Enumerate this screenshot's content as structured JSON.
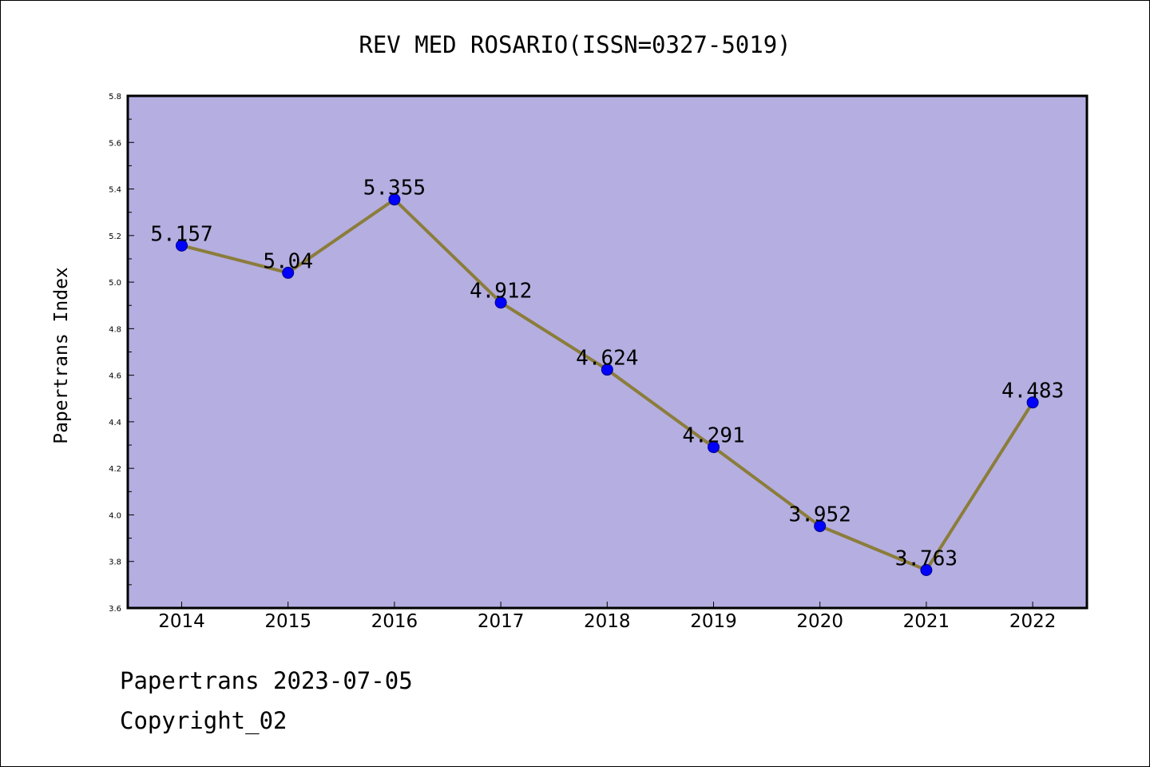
{
  "chart_data": {
    "type": "line",
    "title": "REV MED ROSARIO(ISSN=0327-5019)",
    "ylabel": "Papertrans Index",
    "xlabel": "",
    "categories": [
      "2014",
      "2015",
      "2016",
      "2017",
      "2018",
      "2019",
      "2020",
      "2021",
      "2022"
    ],
    "series": [
      {
        "values": [
          5.157,
          5.04,
          5.355,
          4.912,
          4.624,
          4.291,
          3.952,
          3.763,
          4.483
        ],
        "labels": [
          "5.157",
          "5.04",
          "5.355",
          "4.912",
          "4.624",
          "4.291",
          "3.952",
          "3.763",
          "4.483"
        ]
      }
    ],
    "ylim": [
      3.6,
      5.8
    ],
    "yticks": [
      "3.6",
      "3.8",
      "4.0",
      "4.2",
      "4.4",
      "4.6",
      "4.8",
      "5.0",
      "5.2",
      "5.4",
      "5.6",
      "5.8"
    ],
    "grid": false,
    "legend": "none",
    "colors": {
      "plot_background": "#b4aee1",
      "line": "#8b7d3a",
      "marker": "#0000ff",
      "marker_edge": "#000080"
    }
  },
  "footer": {
    "line1": "Papertrans 2023-07-05",
    "line2": "Copyright_02"
  }
}
